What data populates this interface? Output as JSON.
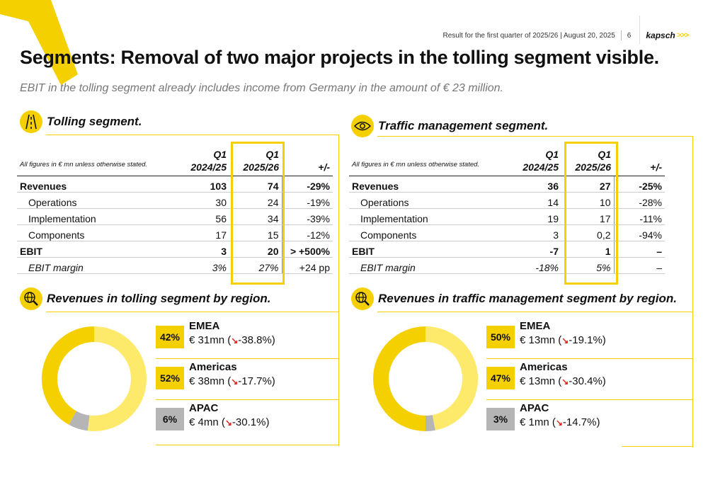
{
  "header": {
    "info": "Result for the first quarter of 2025/26 | August 20, 2025",
    "page_number": "6",
    "logo_text": "kapsch",
    "logo_arrows": ">>>"
  },
  "title": "Segments: Removal of two major projects in the tolling segment visible.",
  "subtitle": "EBIT in the tolling segment already includes income from Germany in the amount of € 23 million.",
  "colors": {
    "accent": "#f5d000",
    "accent_light": "#fde96a",
    "gray": "#b5b5b5",
    "negative_arrow": "#e2231a"
  },
  "tolling": {
    "title": "Tolling segment.",
    "table": {
      "note": "All figures in € mn unless otherwise stated.",
      "col1_line1": "Q1",
      "col1_line2": "2024/25",
      "col2_line1": "Q1",
      "col2_line2": "2025/26",
      "col3": "+/-",
      "rows": [
        {
          "label": "Revenues",
          "v1": "103",
          "v2": "74",
          "change": "-29%"
        },
        {
          "label": "Operations",
          "v1": "30",
          "v2": "24",
          "change": "-19%"
        },
        {
          "label": "Implementation",
          "v1": "56",
          "v2": "34",
          "change": "-39%"
        },
        {
          "label": "Components",
          "v1": "17",
          "v2": "15",
          "change": "-12%"
        },
        {
          "label": "EBIT",
          "v1": "3",
          "v2": "20",
          "change": "> +500%"
        },
        {
          "label": "EBIT margin",
          "v1": "3%",
          "v2": "27%",
          "change": "+24 pp"
        }
      ]
    },
    "regions_title": "Revenues in tolling segment by region.",
    "regions": [
      {
        "pct": "42%",
        "name": "EMEA",
        "value_prefix": "€ 31mn (",
        "arrow": "↘",
        "value_change": "-38.8%)"
      },
      {
        "pct": "52%",
        "name": "Americas",
        "value_prefix": "€ 38mn (",
        "arrow": "↘",
        "value_change": "-17.7%)"
      },
      {
        "pct": "6%",
        "name": "APAC",
        "value_prefix": "€ 4mn (",
        "arrow": "↘",
        "value_change": "-30.1%)"
      }
    ],
    "donut_shares": [
      42,
      52,
      6
    ]
  },
  "traffic": {
    "title": "Traffic management segment.",
    "table": {
      "note": "All figures in € mn unless otherwise stated.",
      "col1_line1": "Q1",
      "col1_line2": "2024/25",
      "col2_line1": "Q1",
      "col2_line2": "2025/26",
      "col3": "+/-",
      "rows": [
        {
          "label": "Revenues",
          "v1": "36",
          "v2": "27",
          "change": "-25%"
        },
        {
          "label": "Operations",
          "v1": "14",
          "v2": "10",
          "change": "-28%"
        },
        {
          "label": "Implementation",
          "v1": "19",
          "v2": "17",
          "change": "-11%"
        },
        {
          "label": "Components",
          "v1": "3",
          "v2": "0,2",
          "change": "-94%"
        },
        {
          "label": "EBIT",
          "v1": "-7",
          "v2": "1",
          "change": "–"
        },
        {
          "label": "EBIT margin",
          "v1": "-18%",
          "v2": "5%",
          "change": "–"
        }
      ]
    },
    "regions_title": "Revenues in traffic management segment by region.",
    "regions": [
      {
        "pct": "50%",
        "name": "EMEA",
        "value_prefix": "€ 13mn (",
        "arrow": "↘",
        "value_change": "-19.1%)"
      },
      {
        "pct": "47%",
        "name": "Americas",
        "value_prefix": "€ 13mn (",
        "arrow": "↘",
        "value_change": "-30.4%)"
      },
      {
        "pct": "3%",
        "name": "APAC",
        "value_prefix": "€ 1mn (",
        "arrow": "↘",
        "value_change": "-14.7%)"
      }
    ],
    "donut_shares": [
      50,
      47,
      3
    ]
  }
}
